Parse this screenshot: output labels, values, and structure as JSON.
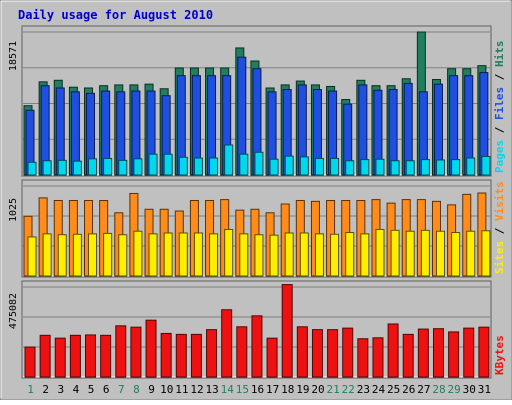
{
  "chart_data": {
    "title": "Daily usage for August 2010",
    "type": "bar",
    "days": [
      "1",
      "2",
      "3",
      "4",
      "5",
      "6",
      "7",
      "8",
      "9",
      "10",
      "11",
      "12",
      "13",
      "14",
      "15",
      "16",
      "17",
      "18",
      "19",
      "20",
      "21",
      "22",
      "23",
      "24",
      "25",
      "26",
      "27",
      "28",
      "29",
      "30",
      "31"
    ],
    "weekend_days": [
      "1",
      "7",
      "8",
      "14",
      "15",
      "21",
      "22",
      "28",
      "29"
    ],
    "panels": [
      {
        "id": "hits",
        "max_label": "18571",
        "ymax": 18571,
        "legend": [
          "Pages",
          "Files",
          "Hits"
        ],
        "series": [
          {
            "name": "Hits",
            "color": "#1f7f5f",
            "values": [
              9000,
              12100,
              12300,
              11400,
              11300,
              11600,
              11700,
              11700,
              11800,
              11200,
              13900,
              13900,
              13900,
              13900,
              16500,
              14800,
              11300,
              11700,
              12200,
              11700,
              11500,
              9800,
              12300,
              11600,
              11600,
              12500,
              18571,
              12400,
              13800,
              13800,
              14200
            ]
          },
          {
            "name": "Files",
            "color": "#1e4fe0",
            "values": [
              8400,
              11600,
              11300,
              10800,
              10600,
              10900,
              10800,
              10900,
              10900,
              10300,
              12900,
              12900,
              12900,
              12900,
              15300,
              13800,
              10800,
              11100,
              11700,
              11100,
              10900,
              9200,
              11700,
              11000,
              11100,
              11900,
              10800,
              11800,
              12900,
              12900,
              13300
            ]
          },
          {
            "name": "Pages",
            "color": "#00d8ee",
            "values": [
              1650,
              1850,
              1900,
              1800,
              2100,
              2150,
              1900,
              2100,
              2700,
              2700,
              2300,
              2200,
              2200,
              3900,
              2700,
              2950,
              2050,
              2450,
              2350,
              2150,
              2150,
              1850,
              2000,
              2050,
              1850,
              1850,
              2000,
              1950,
              2000,
              2200,
              2400
            ]
          }
        ]
      },
      {
        "id": "visits",
        "max_label": "1025",
        "ymax": 1025,
        "legend": [
          "Sites",
          "Visits"
        ],
        "series": [
          {
            "name": "Visits",
            "color": "#ff8c1a",
            "values": [
              680,
              890,
              860,
              860,
              860,
              860,
              720,
              940,
              760,
              760,
              740,
              860,
              860,
              870,
              750,
              760,
              720,
              820,
              860,
              850,
              860,
              860,
              860,
              870,
              830,
              870,
              870,
              850,
              810,
              930,
              945
            ]
          },
          {
            "name": "Sites",
            "color": "#ffee00",
            "values": [
              445,
              480,
              470,
              475,
              480,
              485,
              470,
              510,
              480,
              490,
              490,
              490,
              480,
              530,
              480,
              470,
              465,
              490,
              490,
              480,
              475,
              495,
              480,
              530,
              520,
              510,
              520,
              510,
              495,
              510,
              515
            ]
          }
        ]
      },
      {
        "id": "kbytes",
        "max_label": "475082",
        "ymax": 475082,
        "legend": [
          "KBytes"
        ],
        "series": [
          {
            "name": "KBytes",
            "color": "#ee1111",
            "values": [
              158000,
              220000,
              205000,
              220000,
              222000,
              220000,
              270000,
              263000,
              300000,
              230000,
              225000,
              225000,
              250000,
              355000,
              265000,
              323000,
              205000,
              488000,
              265000,
              250000,
              250000,
              258000,
              202000,
              207000,
              280000,
              225000,
              253000,
              255000,
              238000,
              258000,
              263000
            ]
          }
        ]
      }
    ]
  }
}
